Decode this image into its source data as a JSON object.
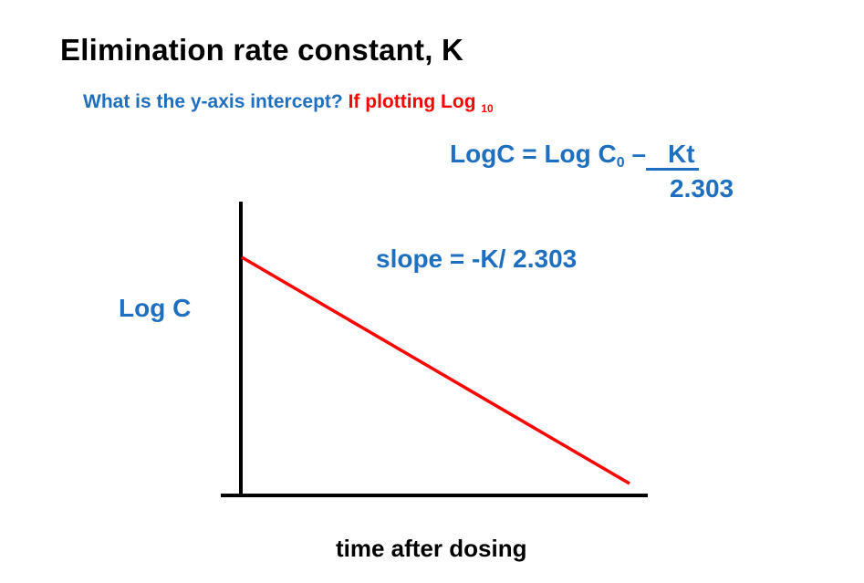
{
  "slide": {
    "title": "Elimination rate constant,  K",
    "question_blue": "What is the  y-axis intercept?",
    "question_red": "If plotting Log",
    "question_sub": "10"
  },
  "equation": {
    "lhs": "LogC = Log C",
    "c0_sub": "0",
    "minus": " –",
    "numerator": "Kt",
    "denominator": "2.303"
  },
  "chart_data": {
    "type": "line",
    "title": "",
    "xlabel": "time after dosing",
    "ylabel": "Log C",
    "annotation": "slope = -K/ 2.303",
    "series": [
      {
        "x": [
          0,
          1
        ],
        "y": [
          1,
          0
        ]
      }
    ],
    "grid": false,
    "line_color": "#ff0000",
    "label_color": "#1f6fc0"
  }
}
